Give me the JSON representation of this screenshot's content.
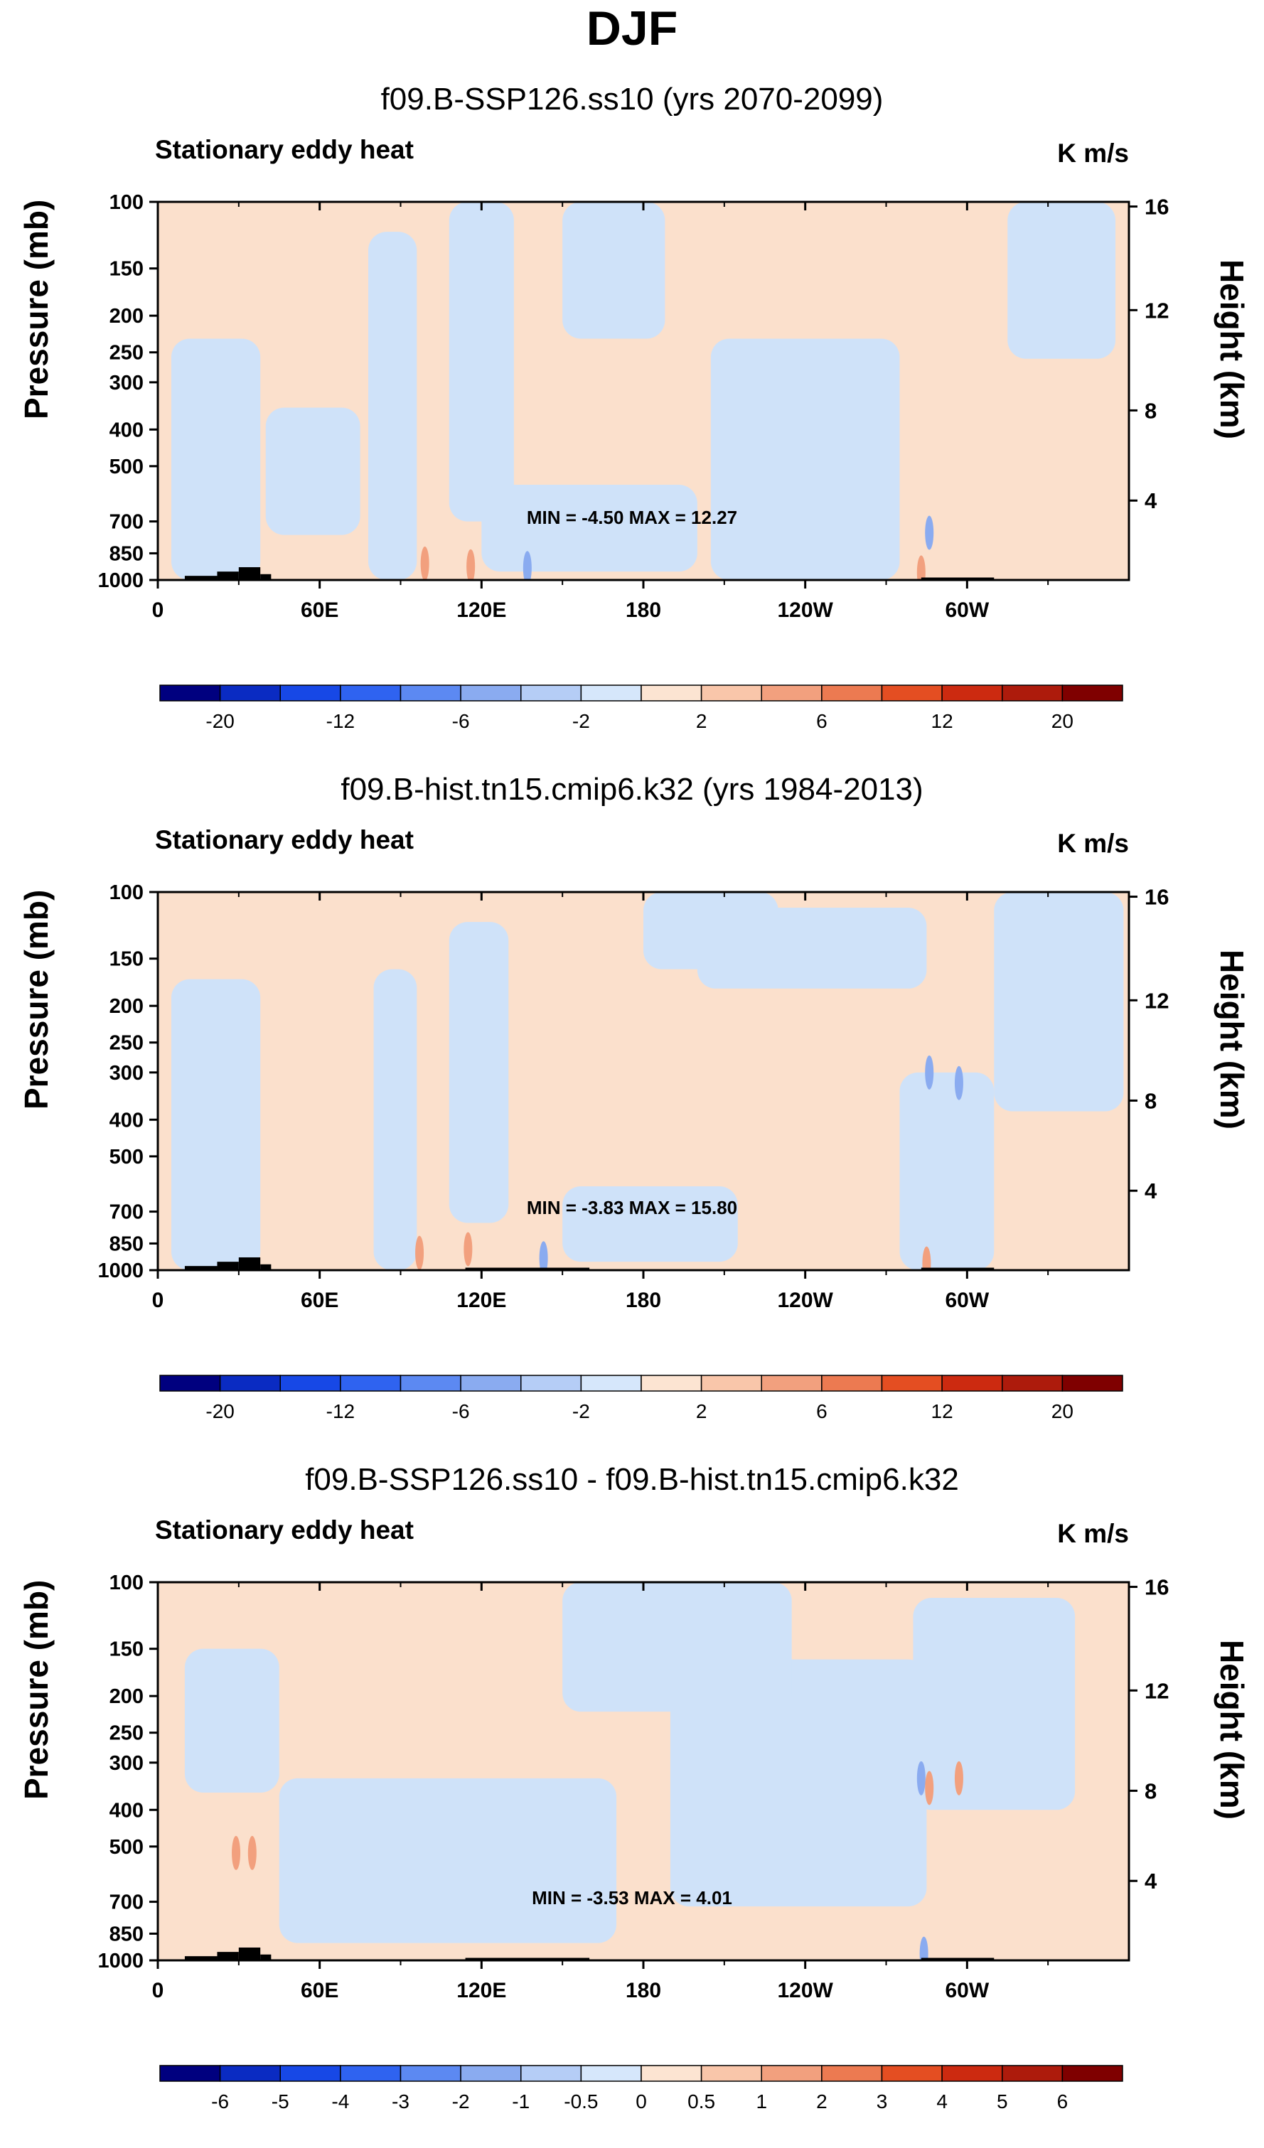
{
  "page": {
    "title": "DJF"
  },
  "colors": {
    "neg_light": "#cfe2f9",
    "pos_light": "#fbe0cc",
    "neg_strong": "#8aabf0",
    "pos_strong": "#f2a07e",
    "topography": "#000000"
  },
  "chart_data": [
    {
      "type": "heatmap",
      "title": "f09.B-SSP126.ss10 (yrs 2070-2099)",
      "variable_label": "Stationary eddy heat",
      "units": "K m/s",
      "xlabel": "",
      "ylabel": "Pressure (mb)",
      "ylabel_right": "Height (km)",
      "x_ticks": [
        "0",
        "60E",
        "120E",
        "180",
        "120W",
        "60W"
      ],
      "x_range": [
        0,
        360
      ],
      "y_ticks": [
        100,
        150,
        200,
        250,
        300,
        400,
        500,
        700,
        850,
        1000
      ],
      "y_range": [
        100,
        1000
      ],
      "height_ticks": [
        4,
        8,
        12,
        16
      ],
      "min_max": "MIN =  -4.50   MAX =  12.27",
      "colorbar_labels": [
        "-20",
        "-12",
        "-6",
        "-2",
        "2",
        "6",
        "12",
        "20"
      ],
      "colorbar_colors": [
        "#00007f",
        "#0a2bc2",
        "#1748e6",
        "#2f63f0",
        "#5c89f2",
        "#8aabf0",
        "#b5cdf6",
        "#d6e7fb",
        "#fce4d2",
        "#f9c6aa",
        "#f2a07e",
        "#ec7a51",
        "#e44e22",
        "#cc2a10",
        "#ad1b0c",
        "#7f0000"
      ]
    },
    {
      "type": "heatmap",
      "title": "f09.B-hist.tn15.cmip6.k32 (yrs 1984-2013)",
      "variable_label": "Stationary eddy heat",
      "units": "K m/s",
      "xlabel": "",
      "ylabel": "Pressure (mb)",
      "ylabel_right": "Height (km)",
      "x_ticks": [
        "0",
        "60E",
        "120E",
        "180",
        "120W",
        "60W"
      ],
      "x_range": [
        0,
        360
      ],
      "y_ticks": [
        100,
        150,
        200,
        250,
        300,
        400,
        500,
        700,
        850,
        1000
      ],
      "y_range": [
        100,
        1000
      ],
      "height_ticks": [
        4,
        8,
        12,
        16
      ],
      "min_max": "MIN =  -3.83   MAX =  15.80",
      "colorbar_labels": [
        "-20",
        "-12",
        "-6",
        "-2",
        "2",
        "6",
        "12",
        "20"
      ],
      "colorbar_colors": [
        "#00007f",
        "#0a2bc2",
        "#1748e6",
        "#2f63f0",
        "#5c89f2",
        "#8aabf0",
        "#b5cdf6",
        "#d6e7fb",
        "#fce4d2",
        "#f9c6aa",
        "#f2a07e",
        "#ec7a51",
        "#e44e22",
        "#cc2a10",
        "#ad1b0c",
        "#7f0000"
      ]
    },
    {
      "type": "heatmap",
      "title": "f09.B-SSP126.ss10 - f09.B-hist.tn15.cmip6.k32",
      "variable_label": "Stationary eddy heat",
      "units": "K m/s",
      "xlabel": "",
      "ylabel": "Pressure (mb)",
      "ylabel_right": "Height (km)",
      "x_ticks": [
        "0",
        "60E",
        "120E",
        "180",
        "120W",
        "60W"
      ],
      "x_range": [
        0,
        360
      ],
      "y_ticks": [
        100,
        150,
        200,
        250,
        300,
        400,
        500,
        700,
        850,
        1000
      ],
      "y_range": [
        100,
        1000
      ],
      "height_ticks": [
        4,
        8,
        12,
        16
      ],
      "min_max": "MIN =  -3.53   MAX =   4.01",
      "colorbar_labels": [
        "-6",
        "-5",
        "-4",
        "-3",
        "-2",
        "-1",
        "-0.5",
        "0",
        "0.5",
        "1",
        "2",
        "3",
        "4",
        "5",
        "6"
      ],
      "colorbar_colors": [
        "#00007f",
        "#0a2bc2",
        "#1748e6",
        "#2f63f0",
        "#5c89f2",
        "#8aabf0",
        "#b5cdf6",
        "#d6e7fb",
        "#fce4d2",
        "#f9c6aa",
        "#f2a07e",
        "#ec7a51",
        "#e44e22",
        "#cc2a10",
        "#ad1b0c",
        "#7f0000"
      ]
    }
  ]
}
